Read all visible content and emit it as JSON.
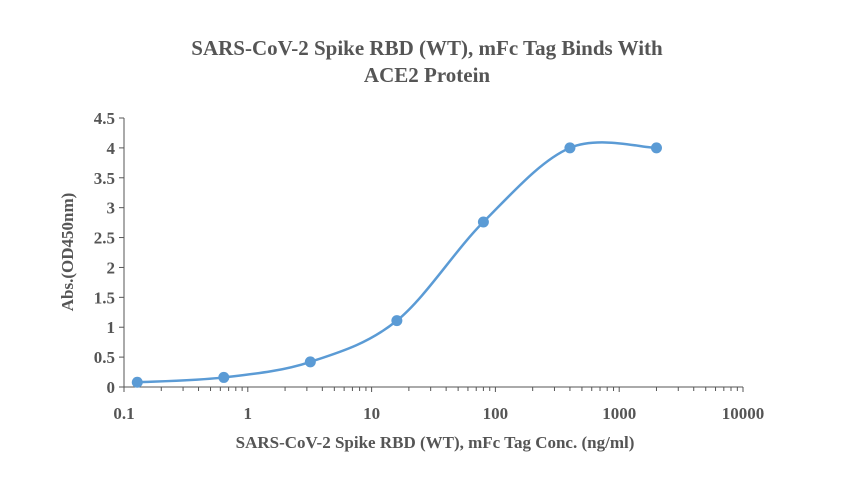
{
  "chart_data": {
    "type": "scatter",
    "title_lines": [
      "SARS-CoV-2 Spike RBD (WT), mFc Tag Binds With",
      "ACE2 Protein"
    ],
    "xlabel": "SARS-CoV-2 Spike RBD (WT), mFc Tag Conc. (ng/ml)",
    "ylabel": "Abs.(OD450nm)",
    "xscale": "log",
    "xlim": [
      0.1,
      10000
    ],
    "ylim": [
      0,
      4.5
    ],
    "x_ticks": [
      "0.1",
      "1",
      "10",
      "100",
      "1000",
      "10000"
    ],
    "y_ticks": [
      "0",
      "0.5",
      "1",
      "1.5",
      "2",
      "2.5",
      "3",
      "3.5",
      "4",
      "4.5"
    ],
    "grid": false,
    "series": [
      {
        "x": [
          0.128,
          0.64,
          3.2,
          16,
          80,
          400,
          2000
        ],
        "y": [
          0.08,
          0.16,
          0.42,
          1.11,
          2.76,
          4.0,
          4.0
        ],
        "smooth_line": true
      }
    ],
    "colors": {
      "series": "#5B9BD5",
      "axis": "#555555",
      "text": "#555555"
    }
  }
}
